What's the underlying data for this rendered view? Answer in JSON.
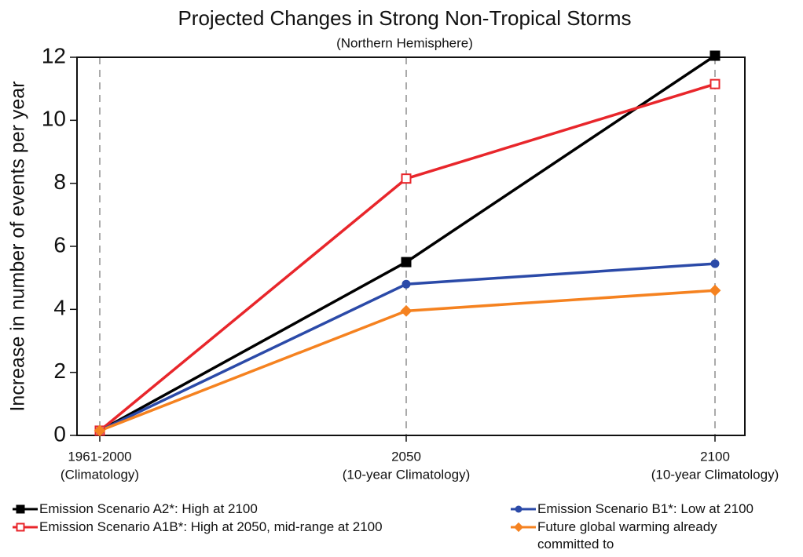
{
  "chart_data": {
    "type": "line",
    "title": "Projected Changes in Strong Non-Tropical Storms",
    "subtitle": "(Northern Hemisphere)",
    "y_label": "Increase in number of events per year",
    "categories": [
      "1961-2000",
      "2050",
      "2100"
    ],
    "category_notes": [
      "(Climatology)",
      "(10-year Climatology)",
      "(10-year Climatology)"
    ],
    "series": [
      {
        "name": "Emission Scenario A2*: High at 2100",
        "color": "#000000",
        "marker": "square",
        "values": [
          0.15,
          5.5,
          12.05
        ]
      },
      {
        "name": "Emission Scenario A1B*: High at 2050, mid-range at 2100",
        "color": "#e8262b",
        "marker": "open-square",
        "values": [
          0.15,
          8.15,
          11.15
        ]
      },
      {
        "name": "Emission Scenario B1*: Low at 2100",
        "color": "#2b4aa8",
        "marker": "circle",
        "values": [
          0.15,
          4.8,
          5.45
        ]
      },
      {
        "name": "Future global warming already committed to",
        "color": "#f58220",
        "marker": "diamond",
        "values": [
          0.15,
          3.95,
          4.6
        ]
      }
    ],
    "ylim": [
      0,
      12
    ],
    "yticks": [
      0,
      2,
      4,
      6,
      8,
      10,
      12
    ],
    "grid": "x",
    "legend": "bottom"
  }
}
